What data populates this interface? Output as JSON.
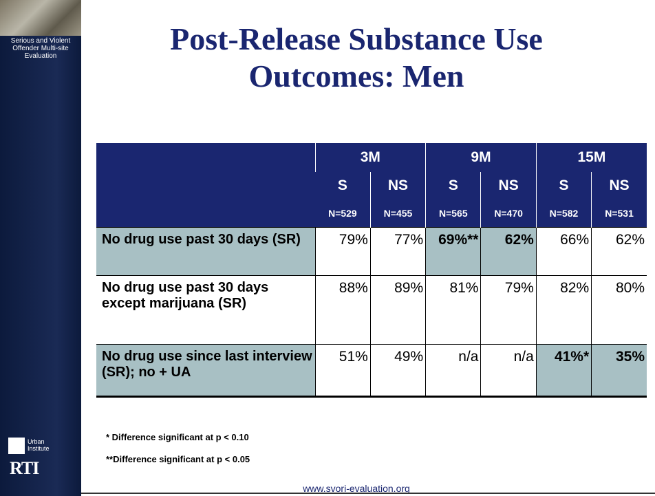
{
  "sidebar": {
    "project": "Serious and Violent Offender Multi-site Evaluation",
    "logo_urban": "Urban Institute",
    "logo_rti": "RTI"
  },
  "title": {
    "line1": "Post-Release Substance Use",
    "line2": "Outcomes: Men"
  },
  "table": {
    "groups": [
      "3M",
      "9M",
      "15M"
    ],
    "subheaders": [
      "S",
      "NS",
      "S",
      "NS",
      "S",
      "NS"
    ],
    "n": [
      "N=529",
      "N=455",
      "N=565",
      "N=470",
      "N=582",
      "N=531"
    ],
    "rows": [
      {
        "label": "No drug use past 30 days (SR)",
        "label_shaded": true,
        "cells": [
          "79%",
          "77%",
          "69%**",
          "62%",
          "66%",
          "62%"
        ],
        "shaded_cells": [
          2,
          3
        ]
      },
      {
        "label": "No drug use past 30 days except marijuana (SR)",
        "label_shaded": false,
        "cells": [
          "88%",
          "89%",
          "81%",
          "79%",
          "82%",
          "80%"
        ],
        "shaded_cells": []
      },
      {
        "label": "No drug use since last interview (SR); no + UA",
        "label_shaded": true,
        "cells": [
          "51%",
          "49%",
          "n/a",
          "n/a",
          "41%*",
          "35%"
        ],
        "shaded_cells": [
          4,
          5
        ]
      }
    ]
  },
  "footnotes": [
    "* Difference significant at p < 0.10",
    "**Difference significant at p < 0.05"
  ],
  "footer": "www.svori-evaluation.org"
}
